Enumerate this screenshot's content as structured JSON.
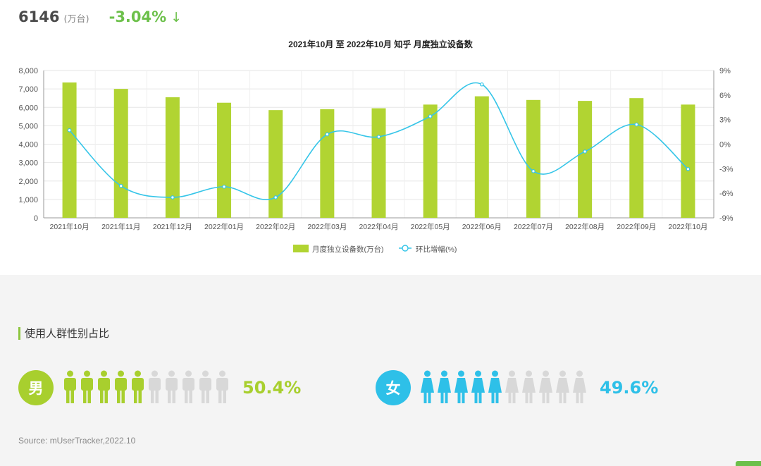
{
  "headline": {
    "value": "6146",
    "unit": "(万台)",
    "change": "-3.04%",
    "arrow": "↓"
  },
  "chart_data": {
    "type": "bar",
    "title": "2021年10月 至 2022年10月 知乎 月度独立设备数",
    "categories": [
      "2021年10月",
      "2021年11月",
      "2021年12月",
      "2022年01月",
      "2022年02月",
      "2022年03月",
      "2022年04月",
      "2022年05月",
      "2022年06月",
      "2022年07月",
      "2022年08月",
      "2022年09月",
      "2022年10月"
    ],
    "series": [
      {
        "name": "月度独立设备数(万台)",
        "type": "bar",
        "axis": "left",
        "color": "#b1d432",
        "values": [
          7350,
          7000,
          6550,
          6250,
          5850,
          5900,
          5950,
          6150,
          6600,
          6400,
          6350,
          6500,
          6150
        ]
      },
      {
        "name": "环比增幅(%)",
        "type": "line",
        "axis": "right",
        "color": "#35c5e8",
        "values": [
          1.7,
          -5.1,
          -6.5,
          -5.2,
          -6.5,
          1.2,
          0.9,
          3.4,
          7.3,
          -3.3,
          -0.9,
          2.4,
          -3.04
        ]
      }
    ],
    "y_left": {
      "ticks": [
        "0",
        "1,000",
        "2,000",
        "3,000",
        "4,000",
        "5,000",
        "6,000",
        "7,000",
        "8,000"
      ],
      "min": 0,
      "max": 8000
    },
    "y_right": {
      "ticks": [
        "-9%",
        "-6%",
        "-3%",
        "0%",
        "3%",
        "6%",
        "9%"
      ],
      "min": -9,
      "max": 9
    },
    "grid": true,
    "legend_position": "bottom"
  },
  "gender_section": {
    "title": "使用人群性别占比",
    "male": {
      "label": "男",
      "percent": "50.4%",
      "filled": 5,
      "total": 10,
      "color": "#a8cf2e"
    },
    "female": {
      "label": "女",
      "percent": "49.6%",
      "filled": 5,
      "total": 10,
      "color": "#2ec0e8"
    }
  },
  "source": "Source:   mUserTracker,2022.10"
}
